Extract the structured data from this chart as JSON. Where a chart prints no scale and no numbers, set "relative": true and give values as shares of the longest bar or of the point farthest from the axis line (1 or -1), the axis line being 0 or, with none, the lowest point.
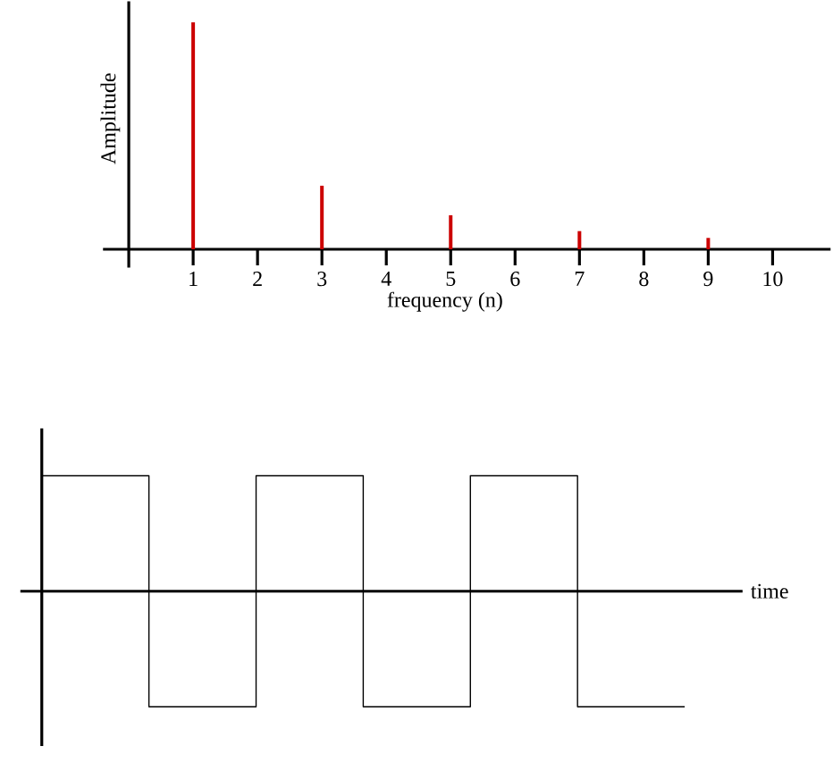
{
  "chart_data": [
    {
      "type": "bar",
      "xlabel": "frequency (n)",
      "ylabel": "Amplitude",
      "relative": true,
      "x": [
        1,
        3,
        5,
        7,
        9
      ],
      "values": [
        1,
        0.28,
        0.15,
        0.08,
        0.05
      ],
      "color": "#cc0000",
      "xlim": [
        -0.4,
        10.9
      ],
      "xticks": [
        1,
        2,
        3,
        4,
        5,
        6,
        7,
        8,
        9,
        10
      ]
    },
    {
      "type": "step",
      "xlabel": "time",
      "relative": true,
      "categories": [
        null,
        null,
        null,
        null,
        null,
        null,
        null
      ],
      "values": [
        1,
        -1,
        1,
        -1,
        1,
        -1,
        -1
      ],
      "color": "#000000"
    }
  ]
}
